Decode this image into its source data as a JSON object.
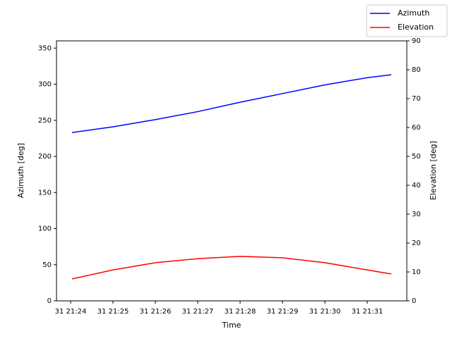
{
  "chart_data": {
    "type": "line",
    "x_label": "Time",
    "y_label": "Azimuth [deg]",
    "y2_label": "Elevation [deg]",
    "x": [
      "21:24:02",
      "21:25:00",
      "21:26:00",
      "21:27:00",
      "21:28:00",
      "21:29:00",
      "21:30:00",
      "21:31:00",
      "21:31:34"
    ],
    "series": [
      {
        "name": "Azimuth",
        "color": "#0000ff",
        "values": [
          233,
          241,
          251,
          262,
          275,
          287,
          299,
          309,
          313
        ]
      },
      {
        "name": "Elevation",
        "color": "#ff0000",
        "axis": "y2",
        "values": [
          7.6,
          10.7,
          13.2,
          14.6,
          15.4,
          14.9,
          13.2,
          10.7,
          9.3
        ]
      }
    ],
    "xlim": [
      "21:23:40",
      "21:31:56"
    ],
    "xticks": [
      {
        "value": "21:24:00",
        "label": "31 21:24"
      },
      {
        "value": "21:25:00",
        "label": "31 21:25"
      },
      {
        "value": "21:26:00",
        "label": "31 21:26"
      },
      {
        "value": "21:27:00",
        "label": "31 21:27"
      },
      {
        "value": "21:28:00",
        "label": "31 21:28"
      },
      {
        "value": "21:29:00",
        "label": "31 21:29"
      },
      {
        "value": "21:30:00",
        "label": "31 21:30"
      },
      {
        "value": "21:31:00",
        "label": "31 21:31"
      }
    ],
    "ylim": [
      0,
      360
    ],
    "yticks": [
      0,
      50,
      100,
      150,
      200,
      250,
      300,
      350
    ],
    "y2lim": [
      0,
      90
    ],
    "y2ticks": [
      0,
      10,
      20,
      30,
      40,
      50,
      60,
      70,
      80,
      90
    ],
    "legend": "upper right"
  }
}
